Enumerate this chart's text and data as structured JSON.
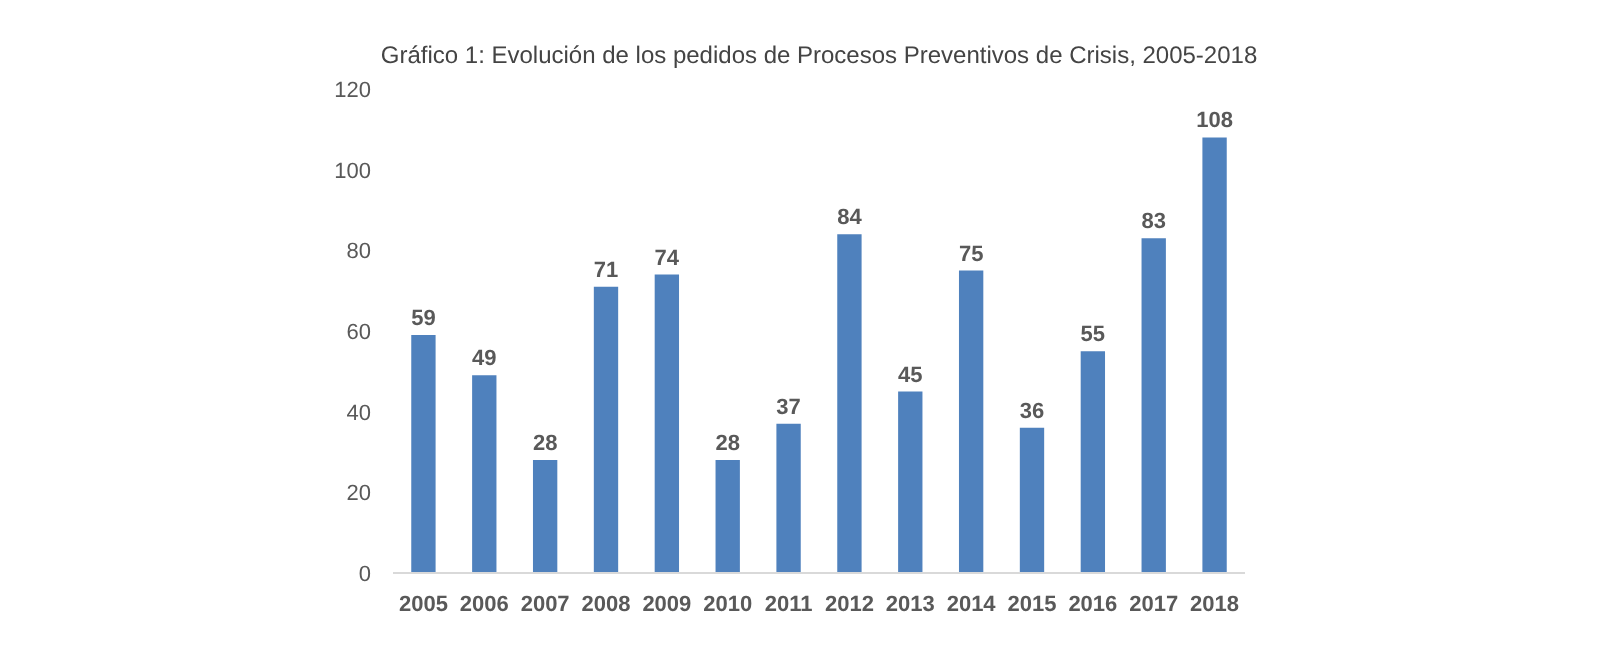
{
  "chart_data": {
    "type": "bar",
    "title": "Gráfico 1: Evolución de los pedidos de Procesos Preventivos de Crisis, 2005-2018",
    "categories": [
      "2005",
      "2006",
      "2007",
      "2008",
      "2009",
      "2010",
      "2011",
      "2012",
      "2013",
      "2014",
      "2015",
      "2016",
      "2017",
      "2018"
    ],
    "values": [
      59,
      49,
      28,
      71,
      74,
      28,
      37,
      84,
      45,
      75,
      36,
      55,
      83,
      108
    ],
    "color": "#4f81bd",
    "ylim": [
      0,
      120
    ],
    "yticks": [
      0,
      20,
      40,
      60,
      80,
      100,
      120
    ],
    "data_labels": true,
    "grid": false
  }
}
